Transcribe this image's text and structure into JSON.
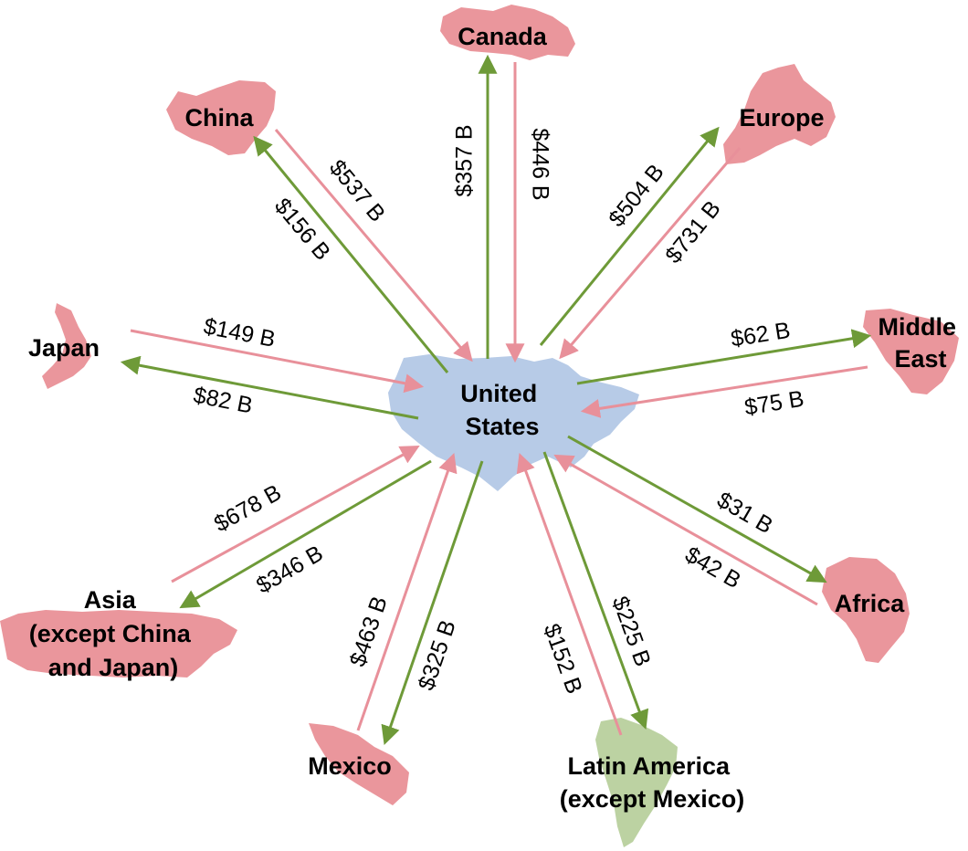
{
  "center": {
    "lines": [
      "United",
      "States"
    ]
  },
  "regions": {
    "canada": {
      "lines": [
        "Canada"
      ]
    },
    "china": {
      "lines": [
        "China"
      ]
    },
    "europe": {
      "lines": [
        "Europe"
      ]
    },
    "japan": {
      "lines": [
        "Japan"
      ]
    },
    "middle_east": {
      "lines": [
        "Middle",
        "East"
      ]
    },
    "asia": {
      "lines": [
        "Asia",
        "(except China",
        "and Japan)"
      ]
    },
    "africa": {
      "lines": [
        "Africa"
      ]
    },
    "mexico": {
      "lines": [
        "Mexico"
      ]
    },
    "latin_america": {
      "lines": [
        "Latin America",
        "(except Mexico)"
      ]
    }
  },
  "flows": {
    "canada_export": "$357 B",
    "canada_import": "$446 B",
    "china_export": "$156 B",
    "china_import": "$537 B",
    "europe_export": "$504 B",
    "europe_import": "$731 B",
    "japan_import": "$149 B",
    "japan_export": "$82 B",
    "middle_east_export": "$62 B",
    "middle_east_import": "$75 B",
    "asia_import": "$678 B",
    "asia_export": "$346 B",
    "africa_export": "$31 B",
    "africa_import": "$42 B",
    "mexico_import": "$463 B",
    "mexico_export": "$325 B",
    "latin_america_import": "$152 B",
    "latin_america_export": "$225 B"
  },
  "colors": {
    "export_arrow": "#6e9a38",
    "import_arrow": "#e8909a",
    "us_fill": "#b7cbe7",
    "region_fill": "#ea969c",
    "latin_america_fill": "#bcd2a2"
  }
}
